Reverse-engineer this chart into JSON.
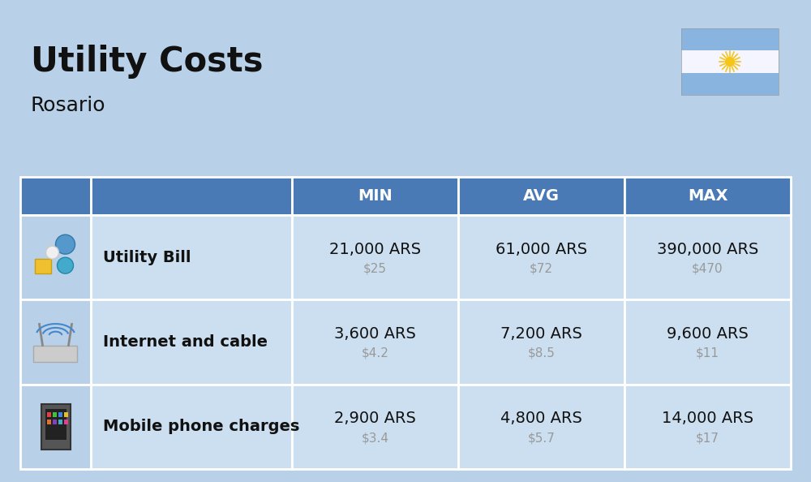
{
  "title": "Utility Costs",
  "subtitle": "Rosario",
  "background_color": "#b8d0e8",
  "header_bg_color": "#4a7ab5",
  "header_text_color": "#ffffff",
  "row_color": "#ccdff0",
  "icon_col_bg": "#b8d0e8",
  "col_headers": [
    "",
    "",
    "MIN",
    "AVG",
    "MAX"
  ],
  "rows": [
    {
      "label": "Utility Bill",
      "min_ars": "21,000 ARS",
      "min_usd": "$25",
      "avg_ars": "61,000 ARS",
      "avg_usd": "$72",
      "max_ars": "390,000 ARS",
      "max_usd": "$470"
    },
    {
      "label": "Internet and cable",
      "min_ars": "3,600 ARS",
      "min_usd": "$4.2",
      "avg_ars": "7,200 ARS",
      "avg_usd": "$8.5",
      "max_ars": "9,600 ARS",
      "max_usd": "$11"
    },
    {
      "label": "Mobile phone charges",
      "min_ars": "2,900 ARS",
      "min_usd": "$3.4",
      "avg_ars": "4,800 ARS",
      "avg_usd": "$5.7",
      "max_ars": "14,000 ARS",
      "max_usd": "$17"
    }
  ],
  "title_fontsize": 30,
  "subtitle_fontsize": 18,
  "header_fontsize": 14,
  "label_fontsize": 14,
  "value_fontsize": 14,
  "usd_fontsize": 11,
  "flag_stripe_color": "#8ab4e0",
  "flag_white": "#f5f5ff",
  "sun_color": "#f5c518"
}
